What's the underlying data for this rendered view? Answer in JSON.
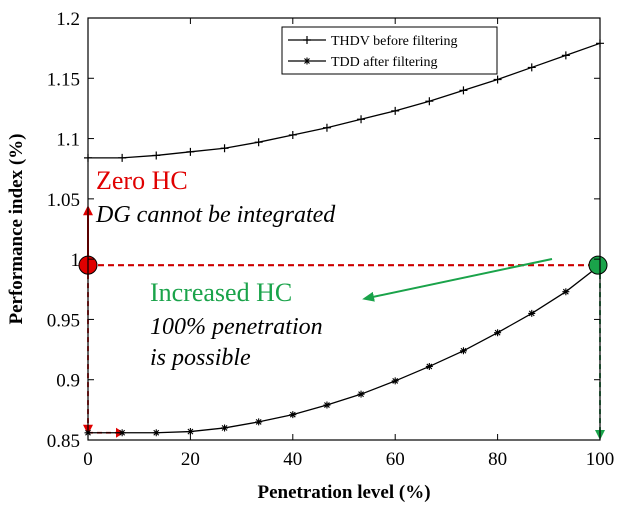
{
  "chart_data": {
    "type": "line",
    "xlabel": "Penetration level (%)",
    "ylabel": "Performance index (%)",
    "xlim": [
      0,
      100
    ],
    "ylim": [
      0.85,
      1.2
    ],
    "xticks": [
      "0",
      "20",
      "40",
      "60",
      "80",
      "100"
    ],
    "yticks": [
      "0.85",
      "0.9",
      "0.95",
      "1",
      "1.05",
      "1.1",
      "1.15",
      "1.2"
    ],
    "grid": false,
    "legend_position": "top-right",
    "series": [
      {
        "name": "THDV before filtering",
        "marker": "plus",
        "color": "#000000",
        "x": [
          0,
          6.67,
          13.33,
          20,
          26.67,
          33.33,
          40,
          46.67,
          53.33,
          60,
          66.67,
          73.33,
          80,
          86.67,
          93.33,
          100
        ],
        "y": [
          1.084,
          1.084,
          1.086,
          1.089,
          1.092,
          1.097,
          1.103,
          1.109,
          1.116,
          1.123,
          1.131,
          1.14,
          1.149,
          1.159,
          1.169,
          1.179
        ]
      },
      {
        "name": "TDD after filtering",
        "marker": "asterisk",
        "color": "#000000",
        "x": [
          0,
          6.67,
          13.33,
          20,
          26.67,
          33.33,
          40,
          46.67,
          53.33,
          60,
          66.67,
          73.33,
          80,
          86.67,
          93.33,
          100
        ],
        "y": [
          0.856,
          0.856,
          0.856,
          0.857,
          0.86,
          0.865,
          0.871,
          0.879,
          0.888,
          0.899,
          0.911,
          0.924,
          0.939,
          0.955,
          0.973,
          0.995
        ]
      }
    ],
    "reference_line": {
      "y": 0.995,
      "x": [
        0,
        100
      ],
      "color": "#cc0000",
      "style": "dashed"
    },
    "annotations": {
      "zero_hc": {
        "title": "Zero HC",
        "subtitle": "DG cannot be integrated",
        "color": "#e00000",
        "point": {
          "x": 0,
          "y": 0.995
        }
      },
      "increased_hc": {
        "title": "Increased HC",
        "line1": "100% penetration",
        "line2": "is possible",
        "color": "#1aa34a",
        "point": {
          "x": 100,
          "y": 0.995
        }
      }
    }
  }
}
